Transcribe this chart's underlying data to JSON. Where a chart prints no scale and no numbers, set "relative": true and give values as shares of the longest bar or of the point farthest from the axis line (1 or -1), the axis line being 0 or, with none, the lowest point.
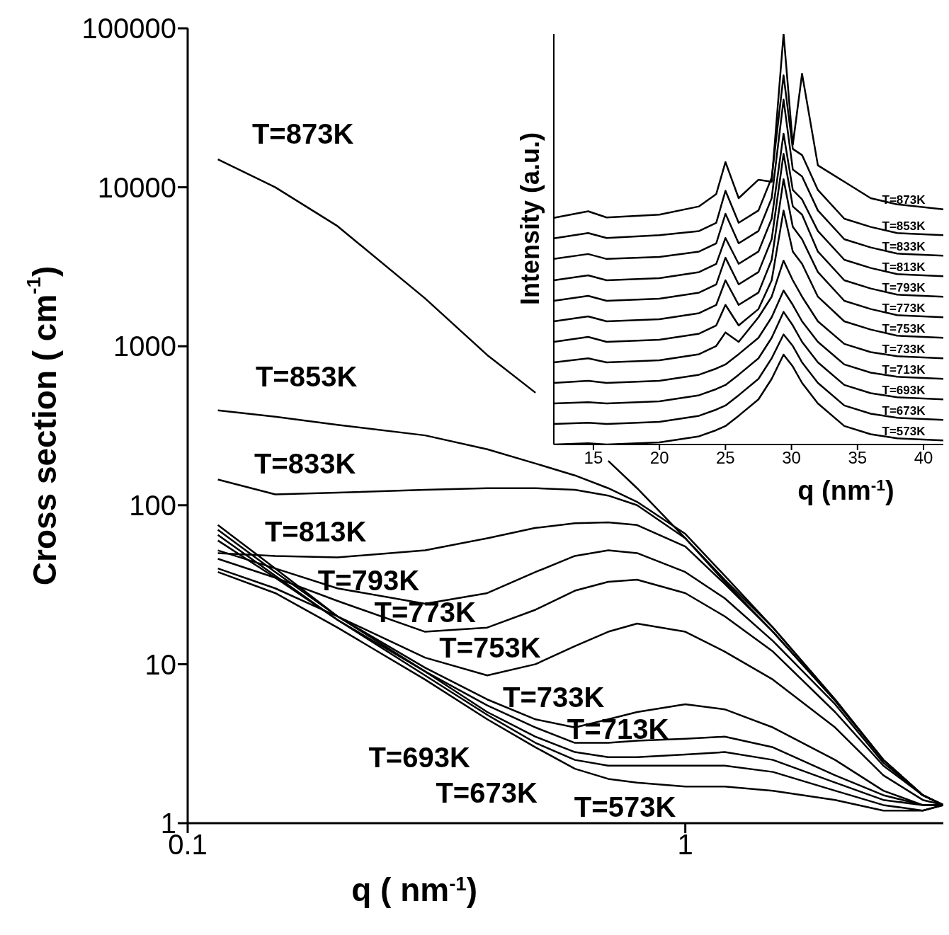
{
  "chart_data": [
    {
      "type": "line",
      "xlabel": "q ( nm$^{-1}$)",
      "ylabel": "Cross section ( cm$^{-1}$)",
      "log": "xy",
      "xlim": [
        0.1,
        3.3
      ],
      "xticks": [
        0.1,
        1
      ],
      "ylim": [
        1,
        100000
      ],
      "yticks": [
        1,
        10,
        100,
        1000,
        10000,
        100000
      ],
      "grid": false,
      "legend": false,
      "x": [
        0.115,
        0.15,
        0.2,
        0.3,
        0.4,
        0.5,
        0.6,
        0.7,
        0.8,
        1,
        1.2,
        1.5,
        2,
        2.5,
        3,
        3.3
      ],
      "series": [
        {
          "name": "T=873K",
          "color": "#000000",
          "values": [
            15000,
            10000,
            5700,
            2000,
            880,
            510,
            null,
            190,
            128,
            62,
            33,
            16,
            5.9,
            2.5,
            1.5,
            1.3
          ]
        },
        {
          "name": "T=853K",
          "color": "#000000",
          "values": [
            395,
            360,
            320,
            275,
            225,
            183,
            154,
            128,
            105,
            66,
            36,
            17,
            6,
            2.5,
            1.5,
            1.3
          ]
        },
        {
          "name": "T=833K",
          "color": "#000000",
          "values": [
            145,
            117,
            120,
            125,
            128,
            128,
            125,
            115,
            100,
            62,
            34,
            17,
            6,
            2.5,
            1.5,
            1.3
          ]
        },
        {
          "name": "T=813K",
          "color": "#000000",
          "values": [
            50,
            48,
            47,
            52,
            62,
            72,
            77,
            78,
            75,
            55,
            32,
            16,
            5.9,
            2.5,
            1.5,
            1.3
          ]
        },
        {
          "name": "T=793K",
          "color": "#000000",
          "values": [
            52,
            40,
            30,
            24,
            28,
            38,
            48,
            52,
            50,
            38,
            26,
            14,
            5.6,
            2.4,
            1.5,
            1.3
          ]
        },
        {
          "name": "T=773K",
          "color": "#000000",
          "values": [
            46,
            35,
            25,
            16,
            17,
            22,
            29,
            33,
            34,
            28,
            20,
            12,
            5,
            2.3,
            1.5,
            1.3
          ]
        },
        {
          "name": "T=753K",
          "color": "#000000",
          "values": [
            40,
            30,
            20,
            11,
            8.5,
            10,
            13,
            16,
            18,
            16,
            12,
            8,
            4,
            2,
            1.4,
            1.3
          ]
        },
        {
          "name": "T=733K",
          "color": "#000000",
          "values": [
            75,
            40,
            20,
            9.5,
            6,
            4.5,
            4,
            4.5,
            5,
            5.6,
            5.2,
            4,
            2.5,
            1.6,
            1.3,
            1.3
          ]
        },
        {
          "name": "T=713K",
          "color": "#000000",
          "values": [
            70,
            38,
            20,
            9,
            5.5,
            4,
            3.2,
            3.2,
            3.3,
            3.4,
            3.5,
            3,
            2,
            1.5,
            1.3,
            1.3
          ]
        },
        {
          "name": "T=693K",
          "color": "#000000",
          "values": [
            65,
            36,
            19,
            9,
            5,
            3.5,
            2.8,
            2.6,
            2.6,
            2.7,
            2.8,
            2.5,
            1.8,
            1.4,
            1.3,
            1.3
          ]
        },
        {
          "name": "T=673K",
          "color": "#000000",
          "values": [
            60,
            35,
            19,
            8.5,
            4.8,
            3.2,
            2.5,
            2.3,
            2.3,
            2.3,
            2.3,
            2.1,
            1.6,
            1.3,
            1.2,
            1.3
          ]
        },
        {
          "name": "T=573K",
          "color": "#000000",
          "values": [
            38,
            28,
            17,
            8,
            4.5,
            3,
            2.2,
            1.9,
            1.8,
            1.7,
            1.7,
            1.6,
            1.4,
            1.2,
            1.2,
            1.3
          ]
        }
      ]
    },
    {
      "type": "line",
      "relative": true,
      "xlabel": "q (nm$^{-1}$)",
      "ylabel": "Intensity (a.u.)",
      "xlim": [
        12,
        41.5
      ],
      "xticks": [
        15,
        20,
        25,
        30,
        35,
        40
      ],
      "grid": false,
      "legend": false,
      "x": [
        12,
        14.6,
        16,
        20,
        23,
        24.3,
        25,
        26,
        27.5,
        28.5,
        29.4,
        30.1,
        30.8,
        32,
        34,
        36,
        38,
        41.5
      ],
      "series": [
        {
          "name": "T=873K",
          "color": "#000000",
          "values": [
            0.552,
            0.568,
            0.553,
            0.56,
            0.58,
            0.61,
            0.688,
            0.6,
            0.645,
            0.64,
            1.0,
            0.73,
            0.903,
            0.68,
            0.64,
            0.6,
            0.585,
            0.573
          ]
        },
        {
          "name": "T=853K",
          "color": "#000000",
          "values": [
            0.502,
            0.515,
            0.503,
            0.51,
            0.52,
            0.54,
            0.618,
            0.54,
            0.57,
            0.65,
            0.899,
            0.72,
            0.705,
            0.62,
            0.55,
            0.53,
            0.515,
            0.51
          ]
        },
        {
          "name": "T=833K",
          "color": "#000000",
          "values": [
            0.452,
            0.464,
            0.452,
            0.457,
            0.47,
            0.49,
            0.562,
            0.49,
            0.52,
            0.6,
            0.84,
            0.67,
            0.653,
            0.57,
            0.5,
            0.48,
            0.465,
            0.46
          ]
        },
        {
          "name": "T=813K",
          "color": "#000000",
          "values": [
            0.4,
            0.412,
            0.4,
            0.405,
            0.42,
            0.44,
            0.503,
            0.44,
            0.47,
            0.55,
            0.757,
            0.62,
            0.597,
            0.52,
            0.45,
            0.43,
            0.415,
            0.41
          ]
        },
        {
          "name": "T=793K",
          "color": "#000000",
          "values": [
            0.35,
            0.362,
            0.35,
            0.355,
            0.37,
            0.39,
            0.455,
            0.39,
            0.42,
            0.5,
            0.708,
            0.58,
            0.56,
            0.47,
            0.4,
            0.38,
            0.365,
            0.36
          ]
        },
        {
          "name": "T=773K",
          "color": "#000000",
          "values": [
            0.3,
            0.312,
            0.3,
            0.305,
            0.32,
            0.34,
            0.4,
            0.34,
            0.37,
            0.45,
            0.646,
            0.53,
            0.5,
            0.42,
            0.35,
            0.33,
            0.315,
            0.31
          ]
        },
        {
          "name": "T=753K",
          "color": "#000000",
          "values": [
            0.25,
            0.262,
            0.25,
            0.255,
            0.27,
            0.29,
            0.34,
            0.29,
            0.33,
            0.4,
            0.57,
            0.47,
            0.44,
            0.36,
            0.3,
            0.28,
            0.265,
            0.26
          ]
        },
        {
          "name": "T=733K",
          "color": "#000000",
          "values": [
            0.2,
            0.21,
            0.2,
            0.205,
            0.22,
            0.24,
            0.273,
            0.25,
            0.31,
            0.36,
            0.448,
            0.4,
            0.36,
            0.3,
            0.245,
            0.225,
            0.215,
            0.21
          ]
        },
        {
          "name": "T=713K",
          "color": "#000000",
          "values": [
            0.15,
            0.155,
            0.15,
            0.155,
            0.17,
            0.185,
            0.195,
            0.22,
            0.26,
            0.31,
            0.375,
            0.34,
            0.3,
            0.25,
            0.195,
            0.175,
            0.165,
            0.16
          ]
        },
        {
          "name": "T=693K",
          "color": "#000000",
          "values": [
            0.1,
            0.103,
            0.1,
            0.105,
            0.12,
            0.135,
            0.145,
            0.17,
            0.21,
            0.26,
            0.323,
            0.29,
            0.25,
            0.2,
            0.145,
            0.125,
            0.115,
            0.11
          ]
        },
        {
          "name": "T=673K",
          "color": "#000000",
          "values": [
            0.05,
            0.053,
            0.05,
            0.055,
            0.07,
            0.085,
            0.095,
            0.12,
            0.16,
            0.21,
            0.268,
            0.24,
            0.2,
            0.15,
            0.095,
            0.075,
            0.065,
            0.06
          ]
        },
        {
          "name": "T=573K",
          "color": "#000000",
          "values": [
            0,
            0.003,
            0,
            0.005,
            0.02,
            0.035,
            0.045,
            0.07,
            0.11,
            0.16,
            0.219,
            0.19,
            0.15,
            0.1,
            0.045,
            0.025,
            0.015,
            0.01
          ]
        }
      ]
    }
  ]
}
